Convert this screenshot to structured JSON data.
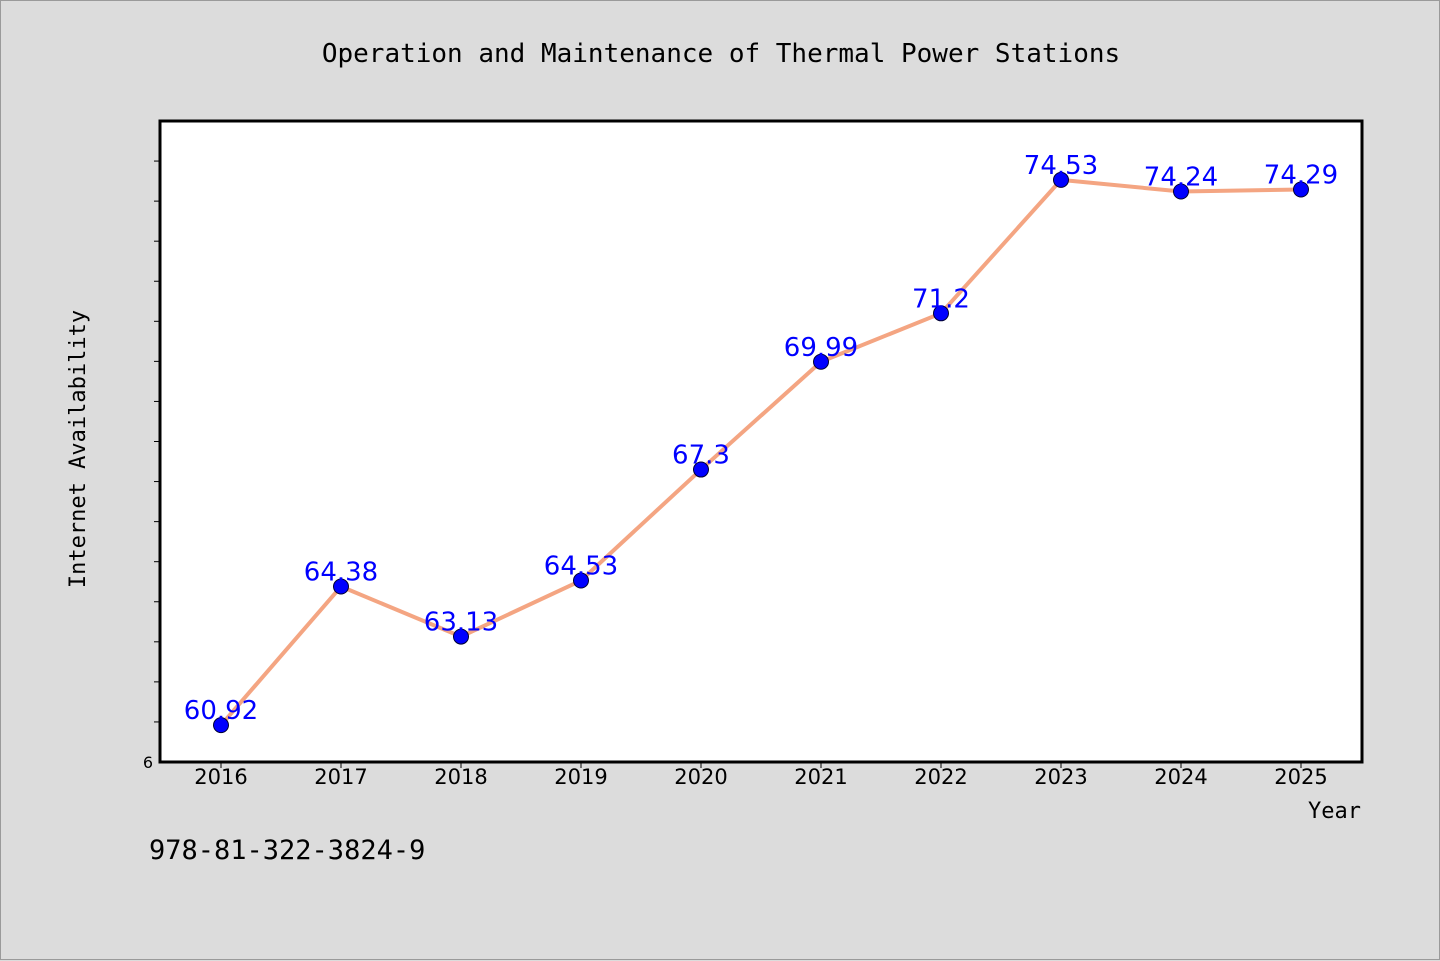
{
  "chart_data": {
    "type": "line",
    "title": "Operation and Maintenance of Thermal Power Stations",
    "xlabel": "Year",
    "ylabel": "Internet Availability",
    "x": [
      "2016",
      "2017",
      "2018",
      "2019",
      "2020",
      "2021",
      "2022",
      "2023",
      "2024",
      "2025"
    ],
    "series": [
      {
        "values": [
          60.92,
          64.38,
          63.13,
          64.53,
          67.3,
          69.99,
          71.2,
          74.53,
          74.24,
          74.29
        ],
        "line_color": "#f4a582",
        "marker_color": "#0000ff"
      }
    ],
    "data_labels": [
      "60.92",
      "64.38",
      "63.13",
      "64.53",
      "67.3",
      "69.99",
      "71.2",
      "74.53",
      "74.24",
      "74.29"
    ],
    "y_tick_labels": [
      "6"
    ],
    "ylim": [
      60,
      76
    ],
    "grid": false,
    "legend": "none"
  },
  "footer": {
    "code": "978-81-322-3824-9"
  }
}
